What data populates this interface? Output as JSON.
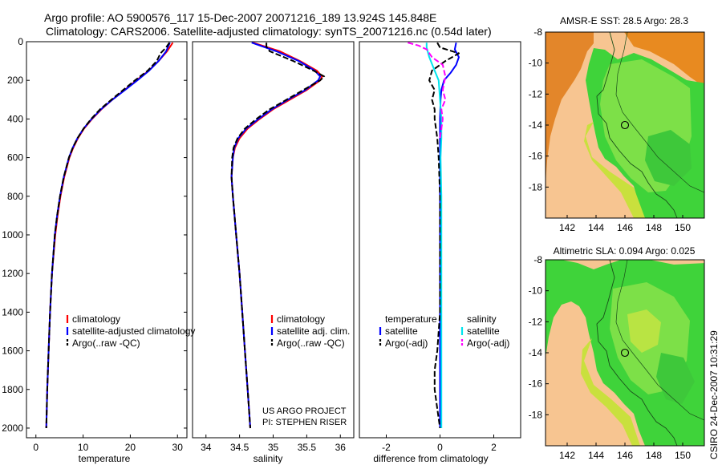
{
  "header": {
    "line1": "Argo profile: AO 5900576_117 15-Dec-2007 20071216_189 13.924S 145.848E",
    "line2": "Climatology: CARS2006. Satellite-adjusted climatology: synTS_20071216.nc (0.54d later)"
  },
  "footer": {
    "stamp": "CSIRO 24-Dec-2007 10:31:29"
  },
  "chart_data": [
    {
      "id": "temperature",
      "type": "line",
      "xlabel": "temperature",
      "ylabel": "",
      "xlim": [
        -2,
        32
      ],
      "ylim": [
        2050,
        0
      ],
      "xticks": [
        0,
        10,
        20,
        30
      ],
      "yticks": [
        0,
        200,
        400,
        600,
        800,
        1000,
        1200,
        1400,
        1600,
        1800,
        2000
      ],
      "legend": [
        "climatology",
        "satellite-adjusted climatology",
        "Argo(..raw -QC)"
      ],
      "legend_position": "lower-right",
      "series": [
        {
          "name": "climatology",
          "color": "#ff0000",
          "dash": "solid",
          "depth": [
            5,
            50,
            100,
            150,
            200,
            250,
            300,
            350,
            400,
            450,
            500,
            550,
            600,
            700,
            800,
            900,
            1000,
            1200,
            1400,
            1600,
            1800,
            2000
          ],
          "values": [
            29.0,
            27.8,
            26.0,
            23.9,
            21.3,
            18.8,
            16.2,
            13.9,
            11.9,
            10.2,
            8.9,
            7.9,
            7.1,
            6.0,
            5.2,
            4.6,
            4.1,
            3.4,
            3.0,
            2.7,
            2.4,
            2.2
          ]
        },
        {
          "name": "satellite-adjusted climatology",
          "color": "#0000ff",
          "dash": "solid",
          "depth": [
            5,
            50,
            100,
            150,
            200,
            250,
            300,
            350,
            400,
            450,
            500,
            550,
            600,
            700,
            800,
            900,
            1000,
            1200,
            1400,
            1600,
            1800,
            2000
          ],
          "values": [
            28.4,
            27.6,
            26.0,
            24.0,
            21.5,
            18.9,
            16.2,
            13.8,
            11.8,
            10.1,
            8.8,
            7.8,
            7.0,
            5.9,
            5.1,
            4.5,
            4.0,
            3.4,
            3.0,
            2.7,
            2.4,
            2.2
          ]
        },
        {
          "name": "Argo(..raw -QC)",
          "color": "#000000",
          "dash": "dashed",
          "depth": [
            5,
            30,
            60,
            100,
            150,
            200,
            250,
            300,
            350,
            400,
            450,
            500,
            550,
            600,
            700,
            800,
            900,
            1000,
            1200,
            1400,
            1600,
            1800,
            2000
          ],
          "values": [
            28.3,
            27.6,
            26.4,
            25.6,
            23.7,
            21.0,
            18.5,
            16.0,
            13.6,
            11.7,
            10.1,
            8.8,
            7.8,
            7.0,
            5.9,
            5.1,
            4.5,
            4.0,
            3.4,
            3.0,
            2.7,
            2.4,
            2.2
          ]
        }
      ]
    },
    {
      "id": "salinity",
      "type": "line",
      "xlabel": "salinity",
      "ylabel": "",
      "xlim": [
        33.8,
        36.2
      ],
      "ylim": [
        2050,
        0
      ],
      "xticks": [
        34,
        34.5,
        35,
        35.5,
        36
      ],
      "tick_labels": [
        "34",
        "34.5",
        "35",
        "35.5",
        "36"
      ],
      "legend": [
        "climatology",
        "satellite adj. clim.",
        "Argo(..raw -QC)"
      ],
      "legend_position": "lower-right",
      "annotation": [
        "US ARGO PROJECT",
        "PI: STEPHEN RISER"
      ],
      "series": [
        {
          "name": "climatology",
          "color": "#ff0000",
          "dash": "solid",
          "depth": [
            5,
            50,
            100,
            150,
            180,
            200,
            250,
            300,
            350,
            400,
            450,
            500,
            550,
            600,
            700,
            800,
            1000,
            1200,
            1400,
            1600,
            1800,
            2000
          ],
          "values": [
            34.7,
            35.1,
            35.4,
            35.65,
            35.73,
            35.7,
            35.5,
            35.25,
            35.0,
            34.8,
            34.62,
            34.5,
            34.43,
            34.4,
            34.38,
            34.4,
            34.45,
            34.5,
            34.54,
            34.58,
            34.62,
            34.66
          ]
        },
        {
          "name": "satellite adj. clim.",
          "color": "#0000ff",
          "dash": "solid",
          "depth": [
            5,
            50,
            100,
            150,
            180,
            200,
            250,
            300,
            350,
            400,
            450,
            500,
            550,
            600,
            700,
            800,
            1000,
            1200,
            1400,
            1600,
            1800,
            2000
          ],
          "values": [
            34.68,
            35.05,
            35.38,
            35.62,
            35.7,
            35.67,
            35.48,
            35.22,
            34.98,
            34.78,
            34.6,
            34.48,
            34.42,
            34.4,
            34.38,
            34.4,
            34.45,
            34.5,
            34.54,
            34.58,
            34.62,
            34.66
          ]
        },
        {
          "name": "Argo(..raw -QC)",
          "color": "#000000",
          "dash": "dashed",
          "depth": [
            5,
            25,
            50,
            100,
            150,
            180,
            200,
            250,
            300,
            350,
            400,
            450,
            500,
            550,
            600,
            700,
            800,
            1000,
            1200,
            1400,
            1600,
            1800,
            2000
          ],
          "values": [
            34.9,
            34.9,
            34.95,
            35.3,
            35.6,
            35.76,
            35.7,
            35.45,
            35.2,
            34.95,
            34.75,
            34.58,
            34.47,
            34.41,
            34.39,
            34.38,
            34.4,
            34.45,
            34.5,
            34.54,
            34.58,
            34.62,
            34.66
          ]
        }
      ]
    },
    {
      "id": "difference",
      "type": "line",
      "xlabel": "difference from climatology",
      "ylabel": "",
      "xlim": [
        -3,
        3
      ],
      "ylim": [
        2050,
        0
      ],
      "xticks": [
        -2,
        0,
        2
      ],
      "legend_groups": [
        {
          "title": "temperature",
          "entries": [
            "satellite",
            "Argo(-adj)"
          ]
        },
        {
          "title": "salinity",
          "entries": [
            "satellite",
            "Argo(-adj)"
          ]
        }
      ],
      "legend_position": "lower-center",
      "series": [
        {
          "name": "temperature satellite",
          "color": "#0000ff",
          "dash": "solid",
          "depth": [
            5,
            40,
            80,
            120,
            160,
            200,
            250,
            300,
            400,
            500,
            700,
            1000,
            1500,
            2000
          ],
          "values": [
            0.6,
            0.55,
            0.7,
            0.6,
            0.4,
            0.15,
            0.05,
            0.02,
            0.0,
            0.0,
            0.0,
            0.0,
            0.0,
            0.0
          ]
        },
        {
          "name": "temperature Argo(-adj)",
          "color": "#000000",
          "dash": "dashed",
          "depth": [
            5,
            30,
            60,
            100,
            150,
            200,
            250,
            300,
            350,
            400,
            500,
            600,
            800,
            1000,
            1200,
            1400,
            1600,
            1700,
            1800,
            1900,
            2000
          ],
          "values": [
            -0.1,
            0.0,
            0.7,
            0.2,
            -0.3,
            -0.4,
            -0.2,
            -0.3,
            -0.2,
            -0.2,
            -0.1,
            -0.05,
            0.0,
            0.0,
            0.0,
            0.0,
            -0.1,
            -0.2,
            -0.2,
            -0.1,
            0.0
          ]
        },
        {
          "name": "salinity satellite",
          "color": "#00e5ee",
          "dash": "solid",
          "depth": [
            5,
            30,
            80,
            150,
            200,
            300,
            400,
            500,
            600,
            800,
            1000,
            1400,
            1800,
            2000
          ],
          "values": [
            -0.5,
            -0.5,
            -0.4,
            -0.2,
            -0.05,
            0.0,
            0.05,
            0.05,
            0.02,
            0.05,
            0.05,
            0.05,
            0.05,
            0.05
          ]
        },
        {
          "name": "salinity Argo(-adj)",
          "color": "#ff00ff",
          "dash": "dashed",
          "depth": [
            5,
            20,
            40,
            80,
            120,
            180,
            250,
            300,
            350,
            400,
            450,
            500
          ],
          "values": [
            -1.2,
            -0.8,
            -0.5,
            -0.3,
            0.1,
            0.2,
            0.1,
            0.2,
            0.05,
            0.1,
            0.05,
            0.0
          ]
        }
      ]
    },
    {
      "id": "sst-map",
      "type": "heatmap",
      "title": "AMSR-E SST: 28.5 Argo: 28.3",
      "xlim": [
        140.5,
        151.5
      ],
      "ylim": [
        -20,
        -8
      ],
      "xticks": [
        142,
        144,
        146,
        148,
        150
      ],
      "yticks": [
        -8,
        -10,
        -12,
        -14,
        -16,
        -18
      ],
      "marker": {
        "lon": 145.848,
        "lat": -13.924
      }
    },
    {
      "id": "sla-map",
      "type": "heatmap",
      "title": "Altimetric SLA: 0.094 Argo: 0.025",
      "xlim": [
        140.5,
        151.5
      ],
      "ylim": [
        -20,
        -8
      ],
      "xticks": [
        142,
        144,
        146,
        148,
        150
      ],
      "yticks": [
        -8,
        -10,
        -12,
        -14,
        -16,
        -18
      ],
      "marker": {
        "lon": 145.848,
        "lat": -13.924
      }
    }
  ]
}
